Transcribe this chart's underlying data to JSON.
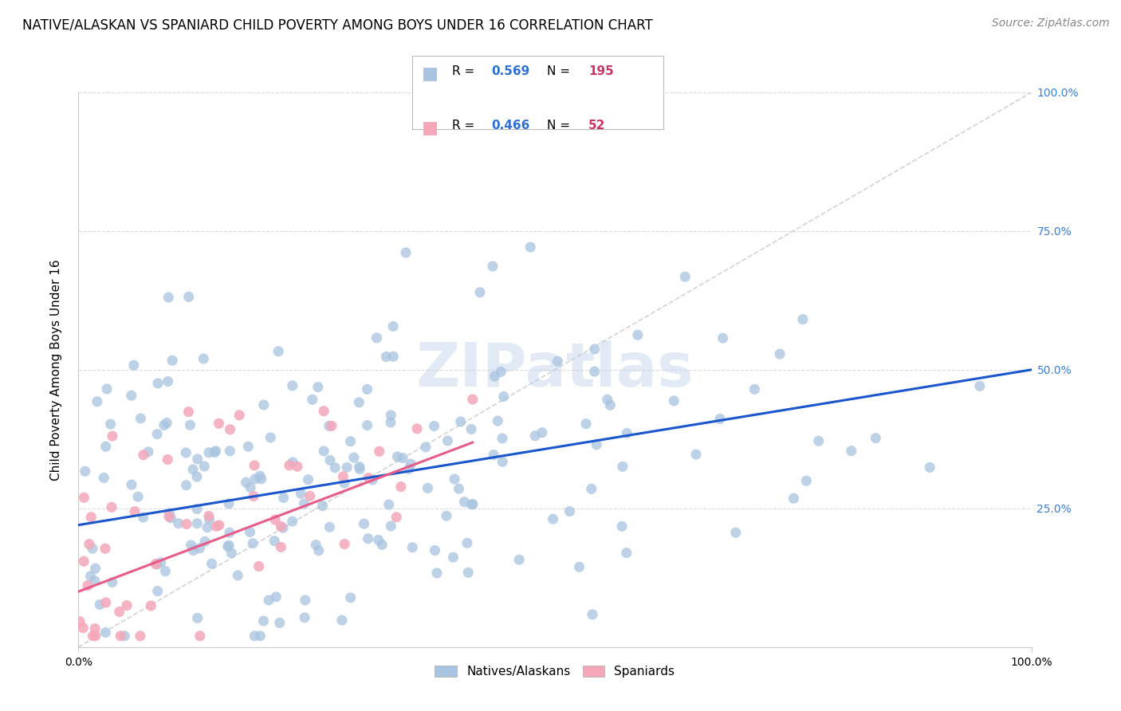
{
  "title": "NATIVE/ALASKAN VS SPANIARD CHILD POVERTY AMONG BOYS UNDER 16 CORRELATION CHART",
  "source": "Source: ZipAtlas.com",
  "ylabel": "Child Poverty Among Boys Under 16",
  "blue_R": 0.569,
  "blue_N": 195,
  "pink_R": 0.466,
  "pink_N": 52,
  "blue_color": "#a8c4e0",
  "blue_line_color": "#1a56cc",
  "pink_color": "#f4a7b9",
  "pink_line_color": "#e85c8a",
  "diagonal_color": "#c8c8c8",
  "right_tick_color": "#3a80d0",
  "legend_R_color": "#3070d0",
  "legend_N_color": "#cc3366",
  "watermark": "ZIPatlas",
  "xlim": [
    0,
    1
  ],
  "ylim": [
    0,
    1
  ],
  "blue_intercept": 0.22,
  "blue_slope": 0.28,
  "pink_intercept": 0.1,
  "pink_slope": 0.65,
  "seed": 42,
  "title_fontsize": 12,
  "label_fontsize": 11,
  "tick_fontsize": 10,
  "source_fontsize": 10
}
